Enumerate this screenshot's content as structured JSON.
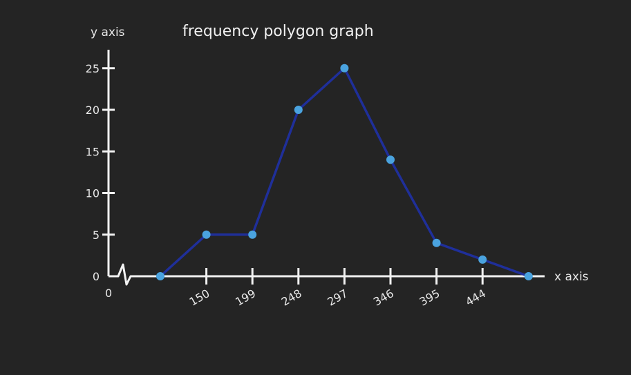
{
  "chart_data": {
    "type": "line",
    "title": "frequency polygon graph",
    "xlabel": "x axis",
    "ylabel": "y axis",
    "x_tick_labels": [
      "150",
      "199",
      "248",
      "297",
      "346",
      "395",
      "444"
    ],
    "y_ticks": [
      0,
      5,
      10,
      15,
      20,
      25
    ],
    "origin_label": "0",
    "ylim": [
      0,
      25
    ],
    "axis_break": true,
    "grid": false,
    "legend": "none",
    "series": [
      {
        "color": "#1f2f9a",
        "marker_color": "#4aa3df",
        "x": [
          "101",
          "150",
          "199",
          "248",
          "297",
          "346",
          "395",
          "444",
          "493"
        ],
        "values": [
          0,
          5,
          5,
          20,
          25,
          14,
          4,
          2,
          0
        ]
      }
    ]
  }
}
